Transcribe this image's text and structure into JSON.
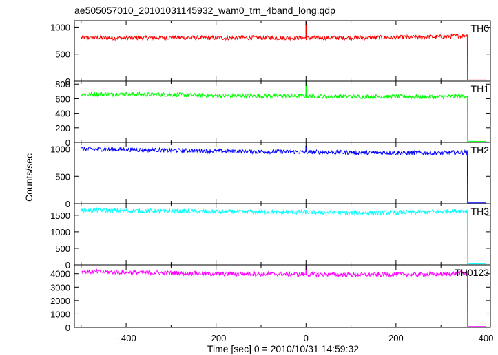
{
  "chart_data": {
    "type": "line",
    "title": "ae505057010_20101031145932_wam0_trn_4band_long.qdp",
    "xlabel": "Time [sec] 0 = 2010/10/31 14:59:32",
    "ylabel": "Counts/sec",
    "xlim": [
      -515,
      410
    ],
    "x_ticks": [
      -400,
      -200,
      0,
      200,
      400
    ],
    "x_tick_labels": [
      "−400",
      "−200",
      "0",
      "200",
      "400"
    ],
    "grid": false,
    "panels": [
      {
        "name": "TH0",
        "color": "#ff0000",
        "ylim": [
          0,
          1120
        ],
        "y_ticks": [
          0,
          500,
          1000
        ],
        "y_tick_labels": [
          "0",
          "500",
          "1000"
        ],
        "series": {
          "x": [
            -500,
            -400,
            -300,
            -200,
            -100,
            0,
            100,
            200,
            300,
            358,
            362,
            400
          ],
          "y": [
            805,
            800,
            810,
            800,
            805,
            800,
            805,
            810,
            820,
            845,
            20,
            20
          ]
        },
        "spike": {
          "x": 0,
          "y": 1150
        }
      },
      {
        "name": "TH1",
        "color": "#00ff00",
        "ylim": [
          0,
          840
        ],
        "y_ticks": [
          0,
          200,
          400,
          600,
          800
        ],
        "y_tick_labels": [
          "0",
          "200",
          "400",
          "600",
          "800"
        ],
        "series": {
          "x": [
            -500,
            -400,
            -300,
            -200,
            -100,
            0,
            100,
            200,
            300,
            358,
            362,
            400
          ],
          "y": [
            660,
            665,
            655,
            640,
            640,
            635,
            630,
            630,
            625,
            640,
            15,
            15
          ]
        },
        "spike": {
          "x": 0,
          "y": 840
        }
      },
      {
        "name": "TH2",
        "color": "#0000ff",
        "ylim": [
          0,
          1120
        ],
        "y_ticks": [
          0,
          500,
          1000
        ],
        "y_tick_labels": [
          "0",
          "500",
          "1000"
        ],
        "series": {
          "x": [
            -500,
            -400,
            -300,
            -200,
            -100,
            0,
            100,
            200,
            300,
            358,
            362,
            400
          ],
          "y": [
            1000,
            990,
            975,
            960,
            950,
            945,
            935,
            930,
            925,
            940,
            15,
            15
          ]
        },
        "spike": {
          "x": 0,
          "y": 1060
        }
      },
      {
        "name": "TH3",
        "color": "#00ffff",
        "ylim": [
          0,
          1850
        ],
        "y_ticks": [
          0,
          500,
          1000,
          1500
        ],
        "y_tick_labels": [
          "0",
          "500",
          "1000",
          "1500"
        ],
        "series": {
          "x": [
            -500,
            -400,
            -300,
            -200,
            -100,
            0,
            100,
            200,
            300,
            358,
            362,
            400
          ],
          "y": [
            1650,
            1640,
            1620,
            1610,
            1600,
            1590,
            1570,
            1580,
            1610,
            1640,
            30,
            30
          ]
        },
        "spike": null
      },
      {
        "name": "TH0123",
        "color": "#ff00ff",
        "ylim": [
          0,
          4650
        ],
        "y_ticks": [
          0,
          1000,
          2000,
          3000,
          4000
        ],
        "y_tick_labels": [
          "0",
          "1000",
          "2000",
          "3000",
          "4000"
        ],
        "series": {
          "x": [
            -500,
            -400,
            -300,
            -200,
            -100,
            0,
            100,
            200,
            300,
            358,
            362,
            400
          ],
          "y": [
            4150,
            4100,
            4050,
            4000,
            3980,
            3960,
            3920,
            3940,
            3960,
            4050,
            60,
            60
          ]
        },
        "spike": {
          "x": 0,
          "y": 4600
        }
      }
    ]
  }
}
